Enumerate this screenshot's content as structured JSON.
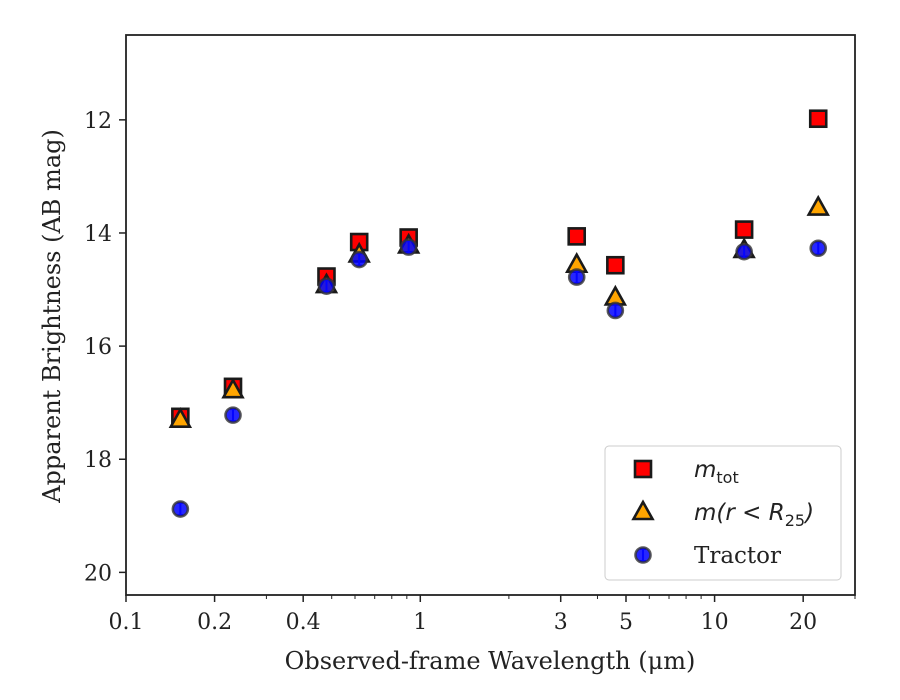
{
  "chart_data": {
    "type": "scatter",
    "xscale": "log",
    "yinverted": true,
    "xlim": [
      0.1,
      30
    ],
    "ylim": [
      20.4,
      10.5
    ],
    "xlabel": "Observed-frame Wavelength (μm)",
    "ylabel": "Apparent Brightness (AB mag)",
    "xticks": [
      {
        "value": 0.1,
        "label": "0.1"
      },
      {
        "value": 0.2,
        "label": "0.2"
      },
      {
        "value": 0.4,
        "label": "0.4"
      },
      {
        "value": 1,
        "label": "1"
      },
      {
        "value": 3,
        "label": "3"
      },
      {
        "value": 5,
        "label": "5"
      },
      {
        "value": 10,
        "label": "10"
      },
      {
        "value": 20,
        "label": "20"
      }
    ],
    "yticks": [
      {
        "value": 12,
        "label": "12"
      },
      {
        "value": 14,
        "label": "14"
      },
      {
        "value": 16,
        "label": "16"
      },
      {
        "value": 18,
        "label": "18"
      },
      {
        "value": 20,
        "label": "20"
      }
    ],
    "grid": false,
    "legend_position": "bottom-right",
    "series": [
      {
        "name": "m_tot",
        "legend_main": "m",
        "legend_sub": "tot",
        "marker": "square",
        "color": "#ff0000",
        "errcolor": "#e00000",
        "points": [
          {
            "x": 0.153,
            "y": 17.25
          },
          {
            "x": 0.231,
            "y": 16.72
          },
          {
            "x": 0.48,
            "y": 14.77
          },
          {
            "x": 0.62,
            "y": 14.16
          },
          {
            "x": 0.913,
            "y": 14.08
          },
          {
            "x": 3.4,
            "y": 14.06
          },
          {
            "x": 4.6,
            "y": 14.57
          },
          {
            "x": 12.6,
            "y": 13.94
          },
          {
            "x": 22.5,
            "y": 11.98
          }
        ]
      },
      {
        "name": "m(r < R_25)",
        "legend_main": "m(r < R",
        "legend_sub": "25",
        "legend_close": ")",
        "marker": "triangle",
        "color": "#ffa500",
        "errcolor": "#ffa500",
        "points": [
          {
            "x": 0.153,
            "y": 17.3
          },
          {
            "x": 0.231,
            "y": 16.78
          },
          {
            "x": 0.48,
            "y": 14.92
          },
          {
            "x": 0.62,
            "y": 14.38
          },
          {
            "x": 0.913,
            "y": 14.22
          },
          {
            "x": 3.4,
            "y": 14.56
          },
          {
            "x": 4.6,
            "y": 15.14
          },
          {
            "x": 12.6,
            "y": 14.3
          },
          {
            "x": 22.5,
            "y": 13.55
          }
        ]
      },
      {
        "name": "Tractor",
        "legend_main": "Tractor",
        "marker": "circle",
        "color": "#0000ff",
        "errcolor": "#2222ff",
        "points": [
          {
            "x": 0.153,
            "y": 18.88
          },
          {
            "x": 0.231,
            "y": 17.22
          },
          {
            "x": 0.48,
            "y": 14.94
          },
          {
            "x": 0.62,
            "y": 14.47
          },
          {
            "x": 0.913,
            "y": 14.25
          },
          {
            "x": 3.4,
            "y": 14.78
          },
          {
            "x": 4.6,
            "y": 15.37
          },
          {
            "x": 12.6,
            "y": 14.33
          },
          {
            "x": 22.5,
            "y": 14.27
          }
        ]
      }
    ]
  }
}
